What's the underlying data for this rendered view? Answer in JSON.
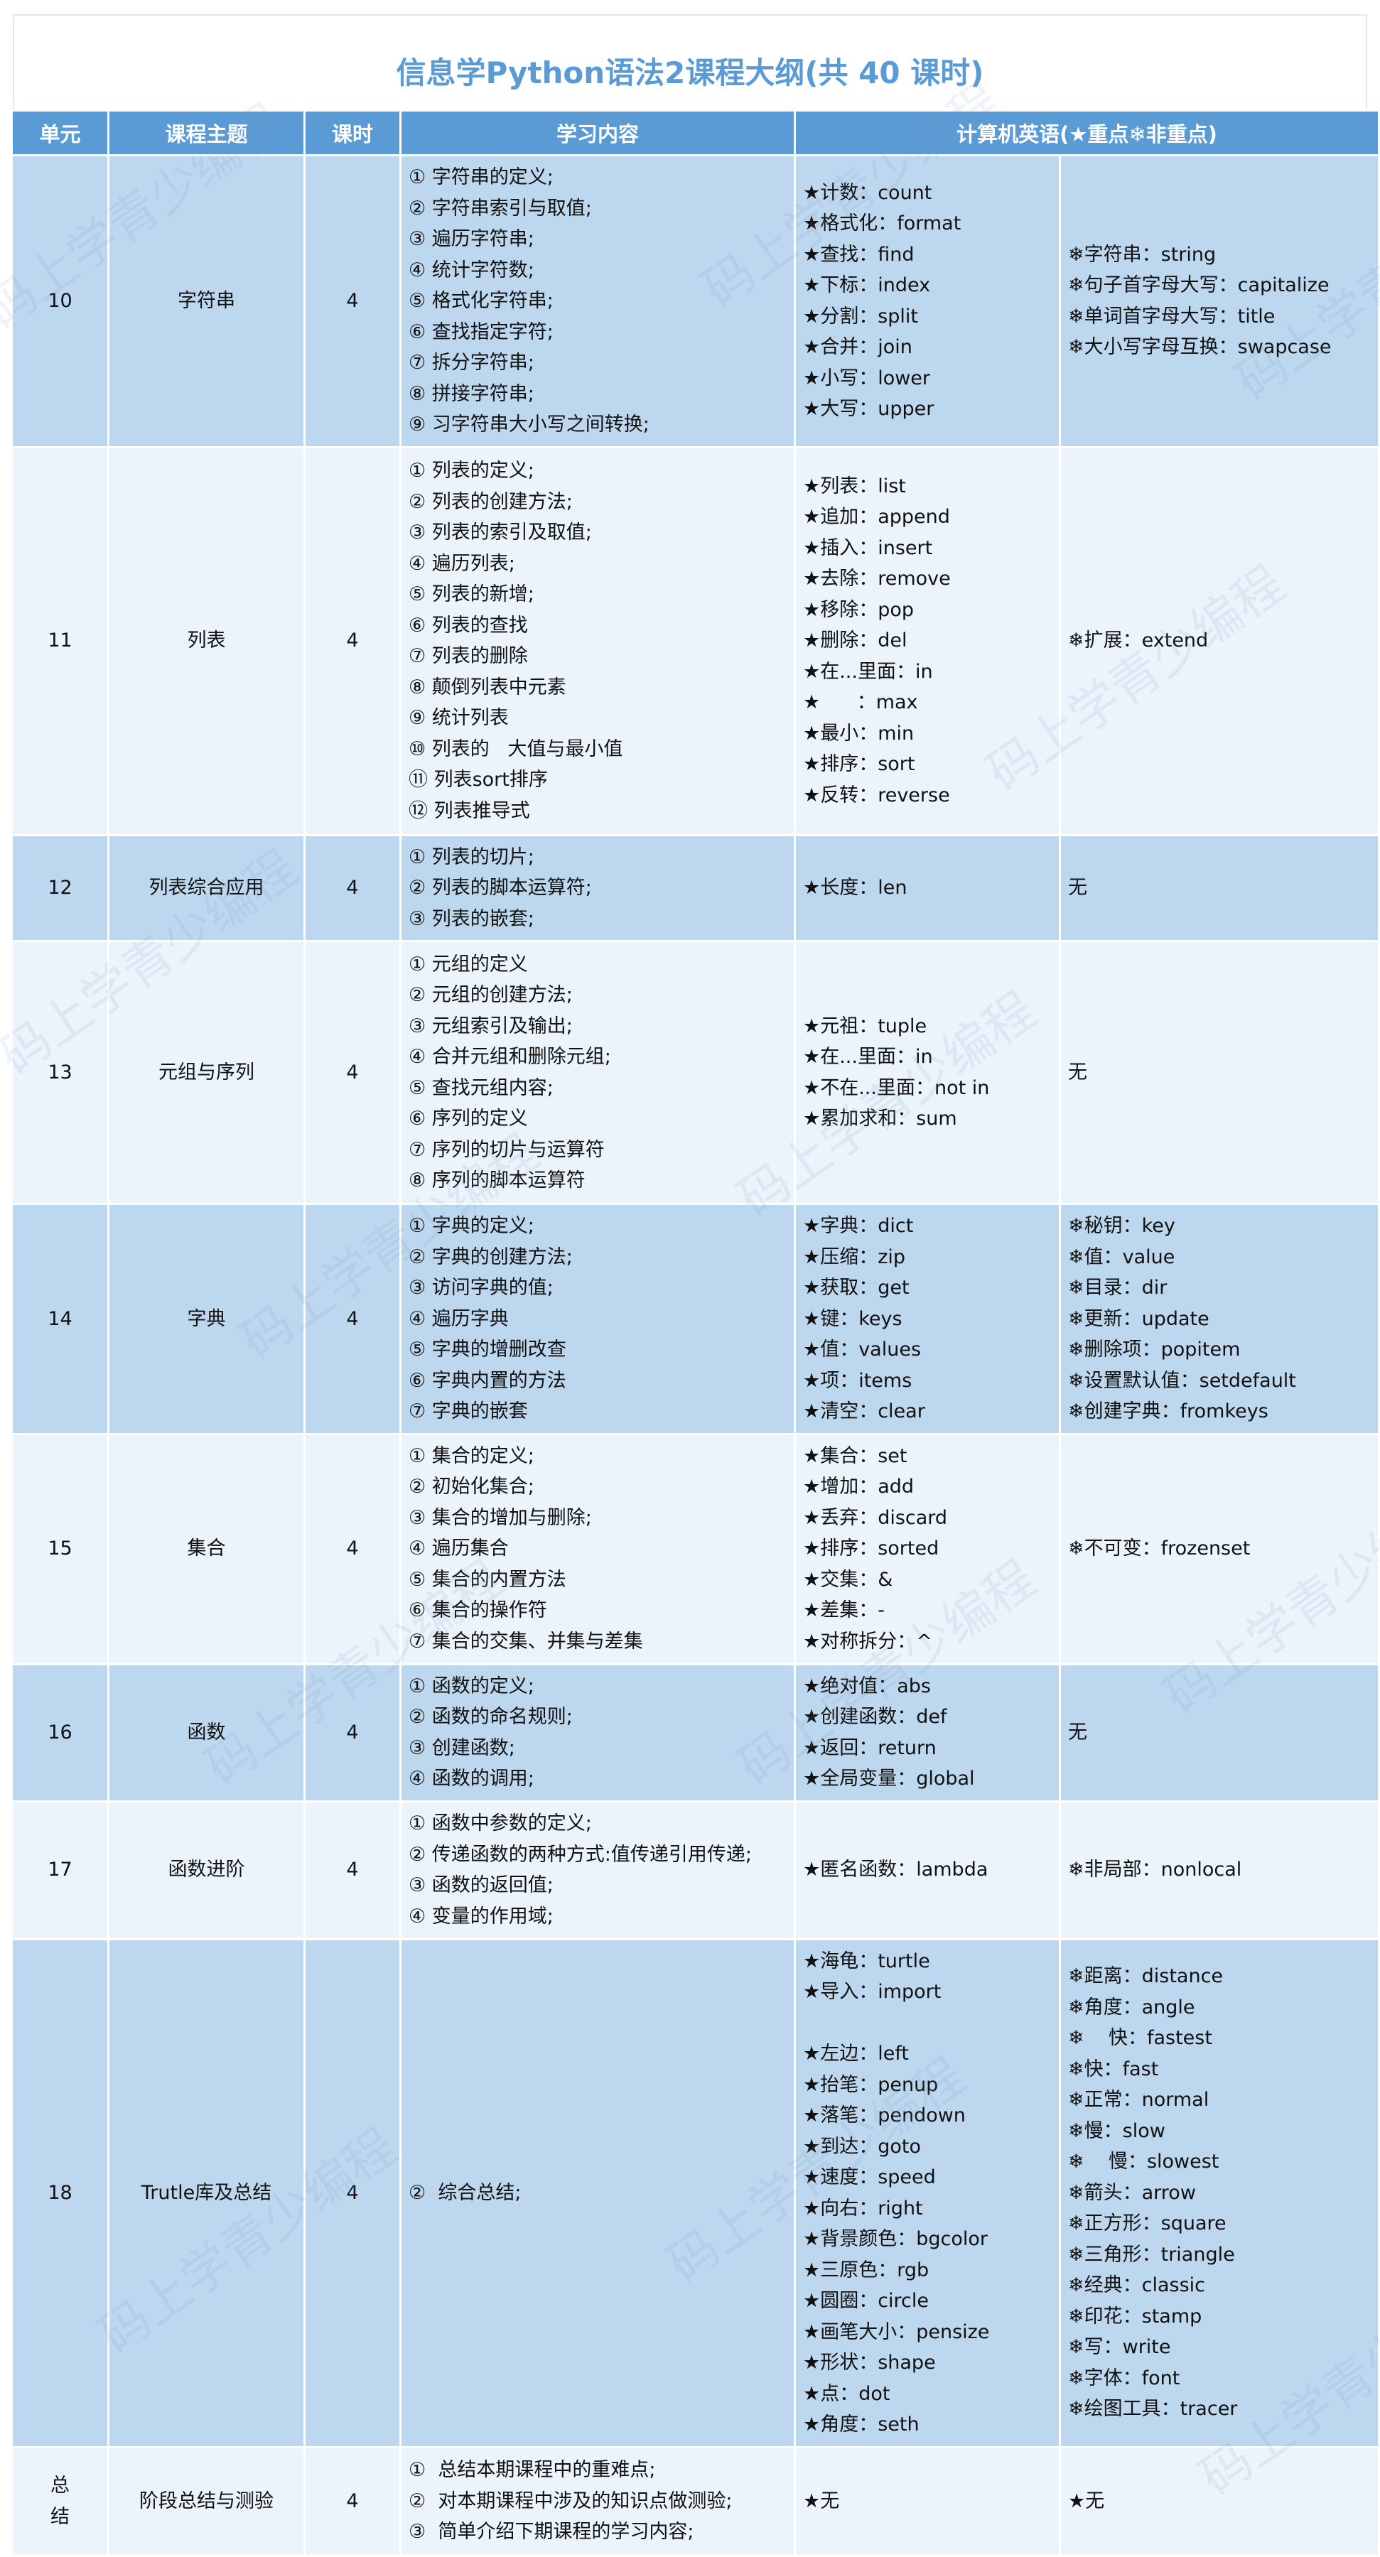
{
  "title": "信息学Python语法2课程大纲(共 40 课时)",
  "headers": {
    "unit": "单元",
    "topic": "课程主题",
    "hours": "课时",
    "content": "学习内容",
    "english": "计算机英语(★重点❄非重点)"
  },
  "watermark": "码上学青少编程",
  "colors": {
    "header": "#5b9bd5",
    "title": "#5b9bd5",
    "row_dark": "#bdd7ee",
    "row_light": "#ebf3fb"
  },
  "rows": [
    {
      "unit": "10",
      "topic": "字符串",
      "hours": "4",
      "content": [
        "① 字符串的定义;",
        "② 字符串索引与取值;",
        "③ 遍历字符串;",
        "④ 统计字符数;",
        "⑤ 格式化字符串;",
        "⑥ 查找指定字符;",
        "⑦ 拆分字符串;",
        "⑧ 拼接字符串;",
        "⑨ 习字符串大小写之间转换;"
      ],
      "key": [
        "★计数：count",
        "★格式化：format",
        "★查找：find",
        "★下标：index",
        "★分割：split",
        "★合并：join",
        "★小写：lower",
        "★大写：upper"
      ],
      "nonkey": [
        "❄字符串：string",
        "❄句子首字母大写：capitalize",
        "❄单词首字母大写：title",
        "❄大小写字母互换：swapcase"
      ]
    },
    {
      "unit": "11",
      "topic": "列表",
      "hours": "4",
      "content": [
        "① 列表的定义;",
        "② 列表的创建方法;",
        "③ 列表的索引及取值;",
        "④ 遍历列表;",
        "⑤ 列表的新增;",
        "⑥ 列表的查找",
        "⑦ 列表的删除",
        "⑧ 颠倒列表中元素",
        "⑨ 统计列表",
        "⑩ 列表的   大值与最小值",
        "⑪ 列表sort排序",
        "⑫ 列表推导式"
      ],
      "key": [
        "★列表：list",
        "★追加：append",
        "★插入：insert",
        "★去除：remove",
        "★移除：pop",
        "★删除：del",
        "★在...里面：in",
        "★      ：max",
        "★最小：min",
        "★排序：sort",
        "★反转：reverse"
      ],
      "nonkey": [
        "❄扩展：extend"
      ]
    },
    {
      "unit": "12",
      "topic": "列表综合应用",
      "hours": "4",
      "content": [
        "① 列表的切片;",
        "② 列表的脚本运算符;",
        "③ 列表的嵌套;"
      ],
      "key": [
        "★长度：len"
      ],
      "nonkey": [
        "无"
      ]
    },
    {
      "unit": "13",
      "topic": "元组与序列",
      "hours": "4",
      "content": [
        "① 元组的定义",
        "② 元组的创建方法;",
        "③ 元组索引及输出;",
        "④ 合并元组和删除元组;",
        "⑤ 查找元组内容;",
        "⑥ 序列的定义",
        "⑦ 序列的切片与运算符",
        "⑧ 序列的脚本运算符"
      ],
      "key": [
        "★元祖：tuple",
        "★在...里面：in",
        "★不在...里面：not in",
        "★累加求和：sum"
      ],
      "nonkey": [
        "无"
      ]
    },
    {
      "unit": "14",
      "topic": "字典",
      "hours": "4",
      "content": [
        "① 字典的定义;",
        "② 字典的创建方法;",
        "③ 访问字典的值;",
        "④ 遍历字典",
        "⑤ 字典的增删改查",
        "⑥ 字典内置的方法",
        "⑦ 字典的嵌套"
      ],
      "key": [
        "★字典：dict",
        "★压缩：zip",
        "★获取：get",
        "★键：keys",
        "★值：values",
        "★项：items",
        "★清空：clear"
      ],
      "nonkey": [
        "❄秘钥：key",
        "❄值：value",
        "❄目录：dir",
        "❄更新：update",
        "❄删除项：popitem",
        "❄设置默认值：setdefault",
        "❄创建字典：fromkeys"
      ]
    },
    {
      "unit": "15",
      "topic": "集合",
      "hours": "4",
      "content": [
        "① 集合的定义;",
        "② 初始化集合;",
        "③ 集合的增加与删除;",
        "④ 遍历集合",
        "⑤ 集合的内置方法",
        "⑥ 集合的操作符",
        "⑦ 集合的交集、并集与差集"
      ],
      "key": [
        "★集合：set",
        "★增加：add",
        "★丢弃：discard",
        "★排序：sorted",
        "★交集：&",
        "★差集：-",
        "★对称拆分：^"
      ],
      "nonkey": [
        "❄不可变：frozenset"
      ]
    },
    {
      "unit": "16",
      "topic": "函数",
      "hours": "4",
      "content": [
        "① 函数的定义;",
        "② 函数的命名规则;",
        "③ 创建函数;",
        "④ 函数的调用;"
      ],
      "key": [
        "★绝对值：abs",
        "★创建函数：def",
        "★返回：return",
        "★全局变量：global"
      ],
      "nonkey": [
        "无"
      ]
    },
    {
      "unit": "17",
      "topic": "函数进阶",
      "hours": "4",
      "content": [
        "① 函数中参数的定义;",
        "② 传递函数的两种方式:值传递引用传递;",
        "③ 函数的返回值;",
        "④ 变量的作用域;"
      ],
      "key": [
        "★匿名函数：lambda"
      ],
      "nonkey": [
        "❄非局部：nonlocal"
      ]
    },
    {
      "unit": "18",
      "topic": "Trutle库及总结",
      "hours": "4",
      "content": [
        "②  综合总结;"
      ],
      "key": [
        "★海龟：turtle",
        "★导入：import",
        "",
        "★左边：left",
        "★抬笔：penup",
        "★落笔：pendown",
        "★到达：goto",
        "★速度：speed",
        "★向右：right",
        "★背景颜色：bgcolor",
        "★三原色：rgb",
        "★圆圈：circle",
        "★画笔大小：pensize",
        "★形状：shape",
        "★点：dot",
        "★角度：seth"
      ],
      "nonkey": [
        "❄距离：distance",
        "❄角度：angle",
        "❄    快：fastest",
        "❄快：fast",
        "❄正常：normal",
        "❄慢：slow",
        "❄    慢：slowest",
        "❄箭头：arrow",
        "❄正方形：square",
        "❄三角形：triangle",
        "❄经典：classic",
        "❄印花：stamp",
        "❄写：write",
        "❄字体：font",
        "❄绘图工具：tracer"
      ]
    },
    {
      "unit": "总结",
      "topic": "阶段总结与测验",
      "hours": "4",
      "content": [
        "①  总结本期课程中的重难点;",
        "②  对本期课程中涉及的知识点做测验;",
        "③  简单介绍下期课程的学习内容;"
      ],
      "key": [
        "★无"
      ],
      "nonkey": [
        "★无"
      ]
    }
  ]
}
